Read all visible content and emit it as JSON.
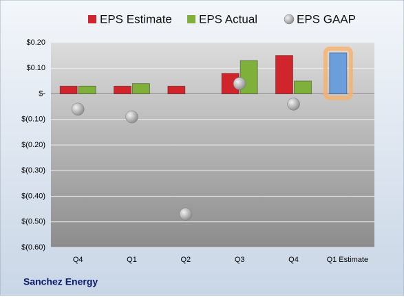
{
  "chart_data": {
    "type": "bar",
    "title": "Sanchez Energy",
    "categories": [
      "Q4",
      "Q1",
      "Q2",
      "Q3",
      "Q4",
      "Q1 Estimate"
    ],
    "series": [
      {
        "name": "EPS Estimate",
        "color": "#d0252b",
        "values": [
          0.03,
          0.03,
          0.03,
          0.08,
          0.15,
          0.16
        ]
      },
      {
        "name": "EPS Actual",
        "color": "#7fb03a",
        "values": [
          0.03,
          0.04,
          null,
          0.13,
          0.05,
          null
        ]
      },
      {
        "name": "EPS GAAP",
        "color": "#a8a8a8",
        "type": "scatter",
        "values": [
          -0.06,
          -0.09,
          -0.47,
          0.04,
          -0.04,
          null
        ]
      }
    ],
    "highlight": {
      "series": 0,
      "index": 5,
      "color": "#6a9fdc",
      "glow": "#f7b26a"
    },
    "ylim": [
      -0.6,
      0.2
    ],
    "yticks": [
      {
        "value": 0.2,
        "label": "$0.20"
      },
      {
        "value": 0.1,
        "label": "$0.10"
      },
      {
        "value": 0,
        "label": "$-"
      },
      {
        "value": -0.1,
        "label": "$(0.10)"
      },
      {
        "value": -0.2,
        "label": "$(0.20)"
      },
      {
        "value": -0.3,
        "label": "$(0.30)"
      },
      {
        "value": -0.4,
        "label": "$(0.40)"
      },
      {
        "value": -0.5,
        "label": "$(0.50)"
      },
      {
        "value": -0.6,
        "label": "$(0.60)"
      }
    ],
    "grid": true,
    "legend": "top"
  }
}
